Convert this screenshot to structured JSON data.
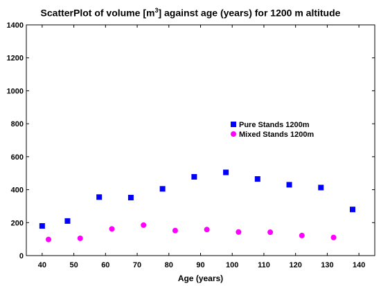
{
  "chart_data": {
    "type": "scatter",
    "title_prefix": "ScatterPlot of volume [m",
    "title_sup": "3",
    "title_suffix": "] against age (years) for 1200 m altitude",
    "xlabel": "Age  (years)",
    "ylabel": "",
    "xlim": [
      35,
      145
    ],
    "ylim": [
      0,
      1400
    ],
    "xticks": [
      40,
      50,
      60,
      70,
      80,
      90,
      100,
      110,
      120,
      130,
      140
    ],
    "yticks": [
      0,
      200,
      400,
      600,
      800,
      1000,
      1200,
      1400
    ],
    "grid": false,
    "legend_position": "right-center",
    "series": [
      {
        "name": "Pure Stands 1200m",
        "marker": "square",
        "color": "#0000ff",
        "x": [
          40,
          48,
          58,
          68,
          78,
          88,
          98,
          108,
          118,
          128,
          138
        ],
        "y": [
          180,
          210,
          355,
          352,
          405,
          478,
          505,
          465,
          430,
          413,
          280
        ]
      },
      {
        "name": "Mixed Stands 1200m",
        "marker": "circle",
        "color": "#ff00ff",
        "x": [
          42,
          52,
          62,
          72,
          82,
          92,
          102,
          112,
          122,
          132
        ],
        "y": [
          98,
          105,
          162,
          185,
          152,
          158,
          143,
          142,
          122,
          110
        ]
      }
    ]
  }
}
